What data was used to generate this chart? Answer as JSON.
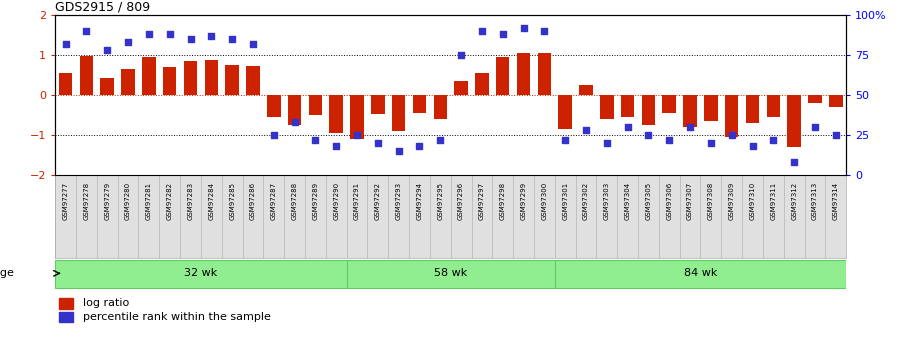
{
  "title": "GDS2915 / 809",
  "samples": [
    "GSM97277",
    "GSM97278",
    "GSM97279",
    "GSM97280",
    "GSM97281",
    "GSM97282",
    "GSM97283",
    "GSM97284",
    "GSM97285",
    "GSM97286",
    "GSM97287",
    "GSM97288",
    "GSM97289",
    "GSM97290",
    "GSM97291",
    "GSM97292",
    "GSM97293",
    "GSM97294",
    "GSM97295",
    "GSM97296",
    "GSM97297",
    "GSM97298",
    "GSM97299",
    "GSM97300",
    "GSM97301",
    "GSM97302",
    "GSM97303",
    "GSM97304",
    "GSM97305",
    "GSM97306",
    "GSM97307",
    "GSM97308",
    "GSM97309",
    "GSM97310",
    "GSM97311",
    "GSM97312",
    "GSM97313",
    "GSM97314"
  ],
  "log_ratio": [
    0.55,
    0.97,
    0.42,
    0.65,
    0.95,
    0.7,
    0.85,
    0.88,
    0.75,
    0.72,
    -0.55,
    -0.75,
    -0.5,
    -0.95,
    -1.1,
    -0.48,
    -0.9,
    -0.45,
    -0.6,
    0.35,
    0.55,
    0.95,
    1.05,
    1.05,
    -0.85,
    0.25,
    -0.6,
    -0.55,
    -0.75,
    -0.45,
    -0.8,
    -0.65,
    -1.05,
    -0.7,
    -0.55,
    -1.3,
    -0.2,
    -0.3
  ],
  "percentile": [
    82,
    90,
    78,
    83,
    88,
    88,
    85,
    87,
    85,
    82,
    25,
    33,
    22,
    18,
    25,
    20,
    15,
    18,
    22,
    75,
    90,
    88,
    92,
    90,
    22,
    28,
    20,
    30,
    25,
    22,
    30,
    20,
    25,
    18,
    22,
    8,
    30,
    25
  ],
  "groups": [
    {
      "label": "32 wk",
      "start": 0,
      "end": 14
    },
    {
      "label": "58 wk",
      "start": 14,
      "end": 24
    },
    {
      "label": "84 wk",
      "start": 24,
      "end": 38
    }
  ],
  "bar_color": "#CC2200",
  "dot_color": "#3333CC",
  "yticks_left": [
    -2,
    -1,
    0,
    1,
    2
  ],
  "yticks_right": [
    0,
    25,
    50,
    75,
    100
  ],
  "ylabel_right_labels": [
    "0",
    "25",
    "50",
    "75",
    "100%"
  ],
  "hline_color": "#CC2200",
  "tick_color": "#CC2200",
  "dotline_color": "black",
  "label_bg_color": "#e0e0e0",
  "group_color": "#90ee90",
  "group_border_color": "#60cc60"
}
